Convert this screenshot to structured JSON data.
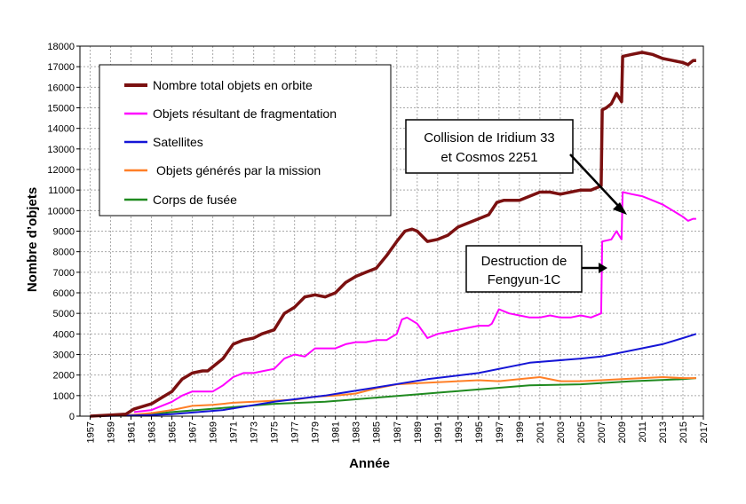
{
  "chart_data": {
    "type": "line",
    "xlabel": "Année",
    "ylabel": "Nombre d’objets",
    "xlim": [
      1956,
      2017
    ],
    "ylim": [
      0,
      18000
    ],
    "xticks": [
      1957,
      1959,
      1961,
      1963,
      1965,
      1967,
      1969,
      1971,
      1973,
      1975,
      1977,
      1979,
      1981,
      1983,
      1985,
      1987,
      1989,
      1991,
      1993,
      1995,
      1997,
      1999,
      2001,
      2003,
      2005,
      2007,
      2009,
      2011,
      2013,
      2015,
      2017
    ],
    "yticks": [
      0,
      1000,
      2000,
      3000,
      4000,
      5000,
      6000,
      7000,
      8000,
      9000,
      10000,
      11000,
      12000,
      13000,
      14000,
      15000,
      16000,
      17000,
      18000
    ],
    "grid": true,
    "legend_position": "top-left",
    "series": [
      {
        "name": "Nombre total objets en orbite",
        "color": "#7b1010",
        "x": [
          1957,
          1959,
          1960.5,
          1961.3,
          1962,
          1963,
          1964,
          1965,
          1965.5,
          1966,
          1967,
          1968,
          1968.5,
          1969,
          1970,
          1971,
          1972,
          1973,
          1973.8,
          1975,
          1976,
          1977,
          1978,
          1979,
          1980,
          1981,
          1982,
          1983,
          1984,
          1985,
          1986,
          1987,
          1987.8,
          1988.5,
          1989,
          1990,
          1991,
          1992,
          1993,
          1994,
          1995,
          1996,
          1996.8,
          1997.5,
          1999,
          2000,
          2001,
          2002,
          2003,
          2004,
          2005,
          2006,
          2007,
          2007.1,
          2007.5,
          2008,
          2008.5,
          2009,
          2009.1,
          2010,
          2011,
          2012,
          2013,
          2014,
          2015,
          2015.5,
          2016,
          2016.3
        ],
        "y": [
          0,
          50,
          100,
          350,
          450,
          600,
          900,
          1200,
          1500,
          1800,
          2100,
          2200,
          2200,
          2400,
          2800,
          3500,
          3700,
          3800,
          4000,
          4200,
          5000,
          5300,
          5800,
          5900,
          5800,
          6000,
          6500,
          6800,
          7000,
          7200,
          7800,
          8500,
          9000,
          9100,
          9000,
          8500,
          8600,
          8800,
          9200,
          9400,
          9600,
          9800,
          10400,
          10500,
          10500,
          10700,
          10900,
          10900,
          10800,
          10900,
          11000,
          11000,
          11200,
          14900,
          15000,
          15200,
          15700,
          15300,
          17500,
          17600,
          17700,
          17600,
          17400,
          17300,
          17200,
          17100,
          17300,
          17300
        ]
      },
      {
        "name": "Objets résultant de fragmentation",
        "color": "#ff00ff",
        "x": [
          1961.3,
          1963,
          1965,
          1966,
          1967,
          1969,
          1970,
          1971,
          1972,
          1973,
          1974,
          1975,
          1976,
          1977,
          1978,
          1979,
          1980,
          1981,
          1982,
          1983,
          1984,
          1985,
          1986,
          1987,
          1987.5,
          1988,
          1989,
          1990,
          1991,
          1992,
          1993,
          1994,
          1995,
          1996,
          1996.3,
          1997,
          1998,
          1999,
          2000,
          2001,
          2002,
          2003,
          2004,
          2005,
          2006,
          2007,
          2007.1,
          2008,
          2008.5,
          2009,
          2009.1,
          2010,
          2011,
          2012,
          2013,
          2014,
          2015,
          2015.5,
          2016,
          2016.3
        ],
        "y": [
          200,
          300,
          700,
          1000,
          1200,
          1200,
          1500,
          1900,
          2100,
          2100,
          2200,
          2300,
          2800,
          3000,
          2900,
          3300,
          3300,
          3300,
          3500,
          3600,
          3600,
          3700,
          3700,
          4000,
          4700,
          4800,
          4500,
          3800,
          4000,
          4100,
          4200,
          4300,
          4400,
          4400,
          4500,
          5200,
          5000,
          4900,
          4800,
          4800,
          4900,
          4800,
          4800,
          4900,
          4800,
          5000,
          8500,
          8600,
          9000,
          8600,
          10900,
          10800,
          10700,
          10500,
          10300,
          10000,
          9700,
          9500,
          9600,
          9600
        ]
      },
      {
        "name": "Satellites",
        "color": "#1515d6",
        "x": [
          1957,
          1960,
          1963,
          1965,
          1970,
          1975,
          1980,
          1985,
          1990,
          1995,
          2000,
          2005,
          2007,
          2010,
          2013,
          2015,
          2016.3
        ],
        "y": [
          0,
          20,
          50,
          100,
          300,
          700,
          1000,
          1400,
          1800,
          2100,
          2600,
          2800,
          2900,
          3200,
          3500,
          3800,
          4000
        ]
      },
      {
        "name": "Objets générés par la mission",
        "color": "#ff7f27",
        "x": [
          1957,
          1961,
          1963,
          1965,
          1967,
          1969,
          1971,
          1973,
          1975,
          1977,
          1979,
          1981,
          1983,
          1985,
          1987,
          1989,
          1991,
          1993,
          1995,
          1997,
          1999,
          2001,
          2003,
          2005,
          2007,
          2009,
          2011,
          2013,
          2015,
          2016.3
        ],
        "y": [
          0,
          50,
          150,
          300,
          500,
          550,
          650,
          700,
          750,
          800,
          950,
          1000,
          1100,
          1350,
          1550,
          1600,
          1650,
          1700,
          1750,
          1700,
          1800,
          1900,
          1700,
          1700,
          1750,
          1800,
          1850,
          1900,
          1850,
          1850
        ]
      },
      {
        "name": "Corps de fusée",
        "color": "#1f8a1f",
        "x": [
          1957,
          1961,
          1963,
          1965,
          1970,
          1975,
          1980,
          1985,
          1990,
          1995,
          2000,
          2005,
          2010,
          2015,
          2016.3
        ],
        "y": [
          0,
          50,
          100,
          200,
          400,
          600,
          700,
          900,
          1100,
          1300,
          1500,
          1550,
          1700,
          1800,
          1850
        ]
      }
    ],
    "annotations": [
      {
        "lines": [
          "Collision de Iridium 33",
          "et Cosmos 2251"
        ]
      },
      {
        "lines": [
          "Destruction de",
          "Fengyun-1C"
        ]
      }
    ]
  }
}
